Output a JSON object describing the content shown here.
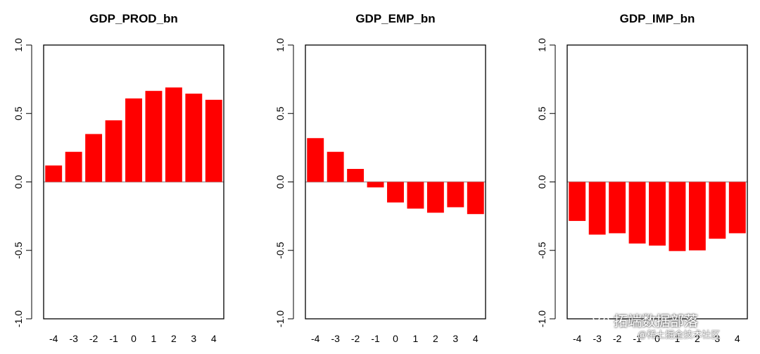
{
  "chart_data": [
    {
      "type": "bar",
      "title": "GDP_PROD_bn",
      "categories": [
        "-4",
        "-3",
        "-2",
        "-1",
        "0",
        "1",
        "2",
        "3",
        "4"
      ],
      "values": [
        0.12,
        0.22,
        0.35,
        0.45,
        0.61,
        0.665,
        0.69,
        0.645,
        0.6
      ],
      "ylim": [
        -1.0,
        1.0
      ],
      "yticks": [
        "-1.0",
        "-0.5",
        "0.0",
        "0.5",
        "1.0"
      ],
      "color": "#ff0000",
      "xlabel": "",
      "ylabel": ""
    },
    {
      "type": "bar",
      "title": "GDP_EMP_bn",
      "categories": [
        "-4",
        "-3",
        "-2",
        "-1",
        "0",
        "1",
        "2",
        "3",
        "4"
      ],
      "values": [
        0.32,
        0.22,
        0.095,
        -0.04,
        -0.15,
        -0.195,
        -0.225,
        -0.185,
        -0.235
      ],
      "ylim": [
        -1.0,
        1.0
      ],
      "yticks": [
        "-1.0",
        "-0.5",
        "0.0",
        "0.5",
        "1.0"
      ],
      "color": "#ff0000",
      "xlabel": "",
      "ylabel": ""
    },
    {
      "type": "bar",
      "title": "GDP_IMP_bn",
      "categories": [
        "-4",
        "-3",
        "-2",
        "-1",
        "0",
        "1",
        "2",
        "3",
        "4"
      ],
      "values": [
        -0.285,
        -0.385,
        -0.375,
        -0.45,
        -0.465,
        -0.505,
        -0.5,
        -0.415,
        -0.375
      ],
      "ylim": [
        -1.0,
        1.0
      ],
      "yticks": [
        "-1.0",
        "-0.5",
        "0.0",
        "0.5",
        "1.0"
      ],
      "color": "#ff0000",
      "xlabel": "",
      "ylabel": ""
    }
  ],
  "watermark": {
    "main": "拓端数据部落",
    "sub": "@稀土掘金技术社区"
  }
}
